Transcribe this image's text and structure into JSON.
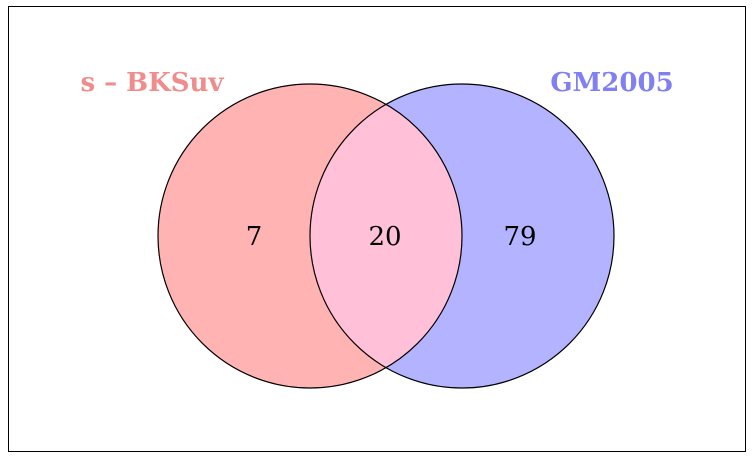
{
  "sets": [
    {
      "label": "s – BKSuv",
      "fill": "#ffb3b3",
      "label_color": "#f08c8c"
    },
    {
      "label": "GM2005",
      "fill": "#b3b3ff",
      "label_color": "#8080f2"
    }
  ],
  "overlap_fill": "#ffc0d8",
  "regions": {
    "only_first": 7,
    "both": 20,
    "only_second": 79
  }
}
